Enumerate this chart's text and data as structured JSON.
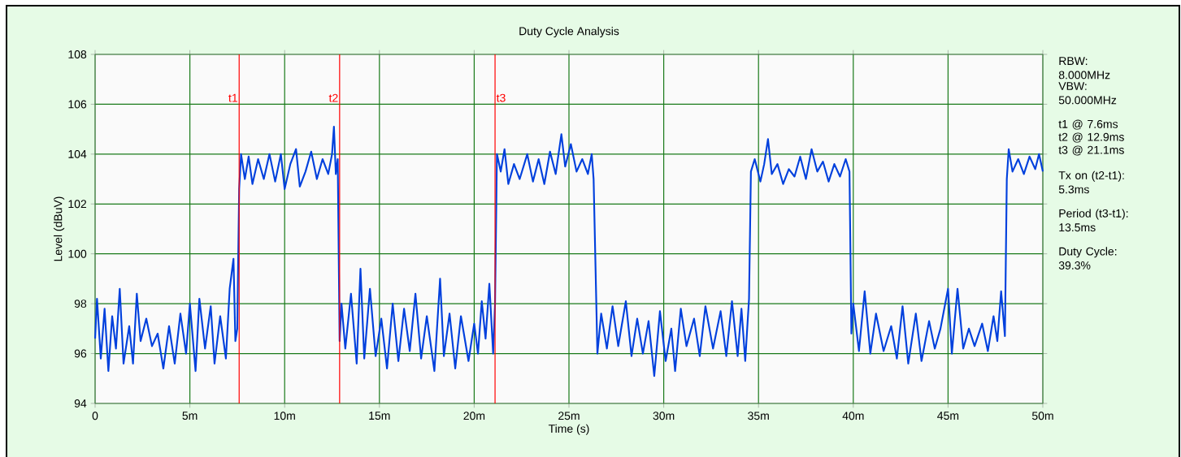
{
  "chart_data": {
    "type": "line",
    "title": "Duty Cycle Analysis",
    "xlabel": "Time (s)",
    "ylabel": "Level (dBuV)",
    "xlim": [
      0,
      50
    ],
    "ylim": [
      94,
      108
    ],
    "xticks": [
      0,
      {
        "value": 5,
        "label": "5m"
      },
      {
        "value": 10,
        "label": "10m"
      },
      {
        "value": 15,
        "label": "15m"
      },
      {
        "value": 20,
        "label": "20m"
      },
      {
        "value": 25,
        "label": "25m"
      },
      {
        "value": 30,
        "label": "30m"
      },
      {
        "value": 35,
        "label": "35m"
      },
      {
        "value": 40,
        "label": "40m"
      },
      {
        "value": 45,
        "label": "45m"
      },
      {
        "value": 50,
        "label": "50m"
      }
    ],
    "yticks": [
      94,
      96,
      98,
      100,
      102,
      104,
      106,
      108
    ],
    "grid": true,
    "series": [
      {
        "color": "#0040dd",
        "x": [
          0,
          0.1,
          0.3,
          0.5,
          0.7,
          0.9,
          1.1,
          1.3,
          1.5,
          1.8,
          2.0,
          2.2,
          2.4,
          2.7,
          3.0,
          3.3,
          3.6,
          3.9,
          4.2,
          4.5,
          4.8,
          5.0,
          5.3,
          5.5,
          5.8,
          6.1,
          6.3,
          6.6,
          6.9,
          7.1,
          7.3,
          7.4,
          7.5,
          7.6,
          7.7,
          7.9,
          8.1,
          8.3,
          8.6,
          8.9,
          9.2,
          9.5,
          9.8,
          10.0,
          10.3,
          10.6,
          10.8,
          11.1,
          11.4,
          11.7,
          12.0,
          12.3,
          12.5,
          12.6,
          12.7,
          12.8,
          12.9,
          13.0,
          13.2,
          13.5,
          13.8,
          14.0,
          14.2,
          14.5,
          14.8,
          15.1,
          15.4,
          15.7,
          16.0,
          16.3,
          16.6,
          16.9,
          17.2,
          17.5,
          17.9,
          18.2,
          18.4,
          18.7,
          19.0,
          19.3,
          19.7,
          20.0,
          20.2,
          20.4,
          20.6,
          20.8,
          21.0,
          21.1,
          21.2,
          21.4,
          21.6,
          21.8,
          22.1,
          22.4,
          22.8,
          23.1,
          23.4,
          23.7,
          24.0,
          24.3,
          24.6,
          24.8,
          25.1,
          25.4,
          25.7,
          26.0,
          26.2,
          26.3,
          26.4,
          26.5,
          26.7,
          27.0,
          27.3,
          27.6,
          28.0,
          28.3,
          28.6,
          28.9,
          29.2,
          29.5,
          29.8,
          30.1,
          30.4,
          30.6,
          30.9,
          31.2,
          31.6,
          31.9,
          32.2,
          32.6,
          33.0,
          33.3,
          33.6,
          33.9,
          34.1,
          34.3,
          34.5,
          34.6,
          34.8,
          35.1,
          35.3,
          35.5,
          35.7,
          36.0,
          36.3,
          36.6,
          36.9,
          37.2,
          37.5,
          37.8,
          38.1,
          38.4,
          38.7,
          39.0,
          39.3,
          39.6,
          39.8,
          39.9,
          40.0,
          40.3,
          40.6,
          40.9,
          41.2,
          41.6,
          42.0,
          42.3,
          42.6,
          42.9,
          43.3,
          43.6,
          44.0,
          44.3,
          44.6,
          45.0,
          45.2,
          45.5,
          45.8,
          46.1,
          46.4,
          46.8,
          47.1,
          47.4,
          47.6,
          47.8,
          48.0,
          48.1,
          48.2,
          48.4,
          48.7,
          49.0,
          49.3,
          49.6,
          49.8,
          50.0
        ],
        "values": [
          96.6,
          98.2,
          95.8,
          97.8,
          95.3,
          97.5,
          96.2,
          98.6,
          95.6,
          97.1,
          95.6,
          98.4,
          96.5,
          97.4,
          96.3,
          96.8,
          95.4,
          97.1,
          95.6,
          97.6,
          96.0,
          98.0,
          95.3,
          98.2,
          96.2,
          97.9,
          95.6,
          97.5,
          95.8,
          98.6,
          99.8,
          96.5,
          97.0,
          102.6,
          104.0,
          103.0,
          103.9,
          102.8,
          103.8,
          103.0,
          104.0,
          102.9,
          104.0,
          102.6,
          103.6,
          104.2,
          102.7,
          103.3,
          104.1,
          103.0,
          103.8,
          103.2,
          104.0,
          105.1,
          103.2,
          103.8,
          96.5,
          98.0,
          96.2,
          98.4,
          95.6,
          99.4,
          95.8,
          98.6,
          95.9,
          97.4,
          95.4,
          98.0,
          95.7,
          97.8,
          96.1,
          98.4,
          95.8,
          97.5,
          95.3,
          99.0,
          95.9,
          97.6,
          95.4,
          97.5,
          95.7,
          97.2,
          96.0,
          98.1,
          96.6,
          98.8,
          96.0,
          98.0,
          104.0,
          103.3,
          104.2,
          102.8,
          103.6,
          103.0,
          104.0,
          102.9,
          103.8,
          102.8,
          104.1,
          103.2,
          104.8,
          103.5,
          104.4,
          103.3,
          103.8,
          103.2,
          104.0,
          103.0,
          99.5,
          96.0,
          97.6,
          96.2,
          97.9,
          96.3,
          98.1,
          95.9,
          97.4,
          96.0,
          97.3,
          95.1,
          97.7,
          95.7,
          97.0,
          95.3,
          97.8,
          96.3,
          97.4,
          95.9,
          97.9,
          96.2,
          97.7,
          95.9,
          98.1,
          95.9,
          97.8,
          95.7,
          98.2,
          103.3,
          103.8,
          102.9,
          103.6,
          104.6,
          103.2,
          103.6,
          102.8,
          103.4,
          103.1,
          103.9,
          103.0,
          104.2,
          103.3,
          103.7,
          102.9,
          103.6,
          103.1,
          103.8,
          103.3,
          96.8,
          98.0,
          96.1,
          98.5,
          96.0,
          97.6,
          96.1,
          97.1,
          95.8,
          97.9,
          95.6,
          97.6,
          95.7,
          97.3,
          96.2,
          97.0,
          98.6,
          96.0,
          98.6,
          96.2,
          97.0,
          96.3,
          97.2,
          96.1,
          97.5,
          96.5,
          98.5,
          96.7,
          103.0,
          104.2,
          103.3,
          103.8,
          103.2,
          103.9,
          103.4,
          104.0,
          103.3
        ]
      }
    ],
    "ref_lines": [
      {
        "axis": "x",
        "value": 7.6,
        "label": "t1",
        "color": "#ff0000"
      },
      {
        "axis": "x",
        "value": 12.9,
        "label": "t2",
        "color": "#ff0000"
      },
      {
        "axis": "x",
        "value": 21.1,
        "label": "t3",
        "color": "#ff0000"
      }
    ],
    "annotations": [
      "RBW: 8.000MHz",
      "VBW: 50.000MHz",
      "t1 @ 7.6ms",
      "t2 @ 12.9ms",
      "t3 @ 21.1ms",
      "Tx on (t2-t1): 5.3ms",
      "Period (t3-t1): 13.5ms",
      "Duty Cycle: 39.3%"
    ]
  }
}
